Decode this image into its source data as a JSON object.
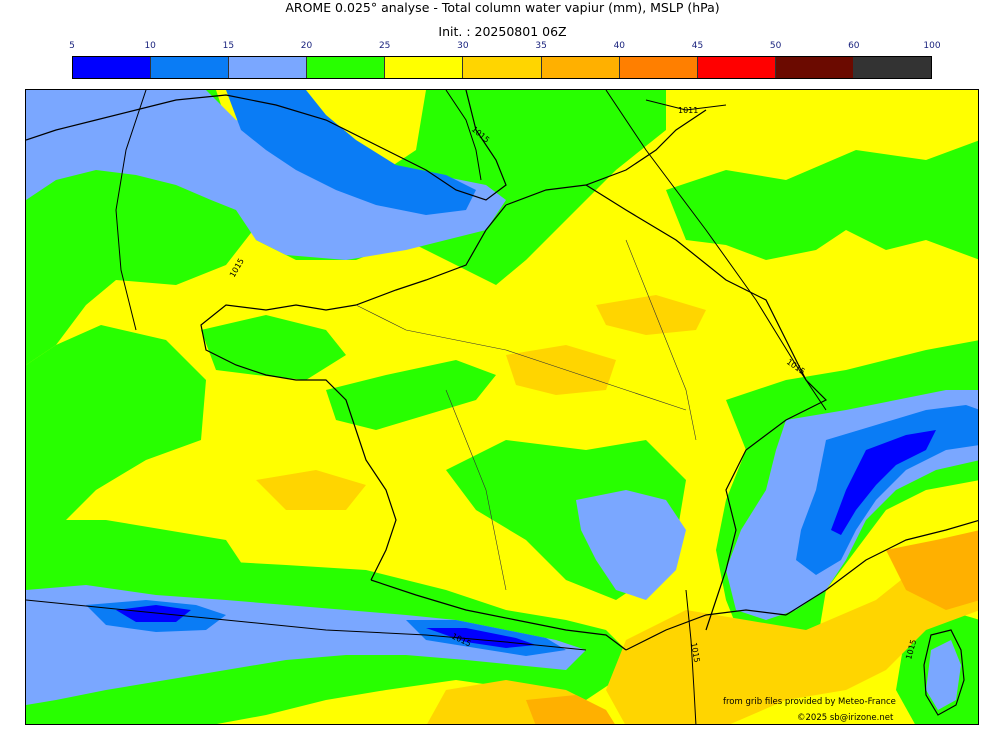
{
  "header": {
    "title": "AROME 0.025° analyse - Total column water vapiur (mm), MSLP (hPa)",
    "subtitle": "Init. : 20250801 06Z"
  },
  "colorbar": {
    "ticks": [
      "5",
      "10",
      "15",
      "20",
      "25",
      "30",
      "35",
      "40",
      "45",
      "50",
      "60",
      "100"
    ],
    "colors": [
      "#0000ff",
      "#0a7cf5",
      "#7aa7ff",
      "#28ff00",
      "#ffff00",
      "#ffd500",
      "#ffb000",
      "#ff7f00",
      "#ff0000",
      "#6b0a00",
      "#333333"
    ]
  },
  "map": {
    "isobar_labels": [
      "1011",
      "1015",
      "1015",
      "1015",
      "1015",
      "1015",
      "1015"
    ]
  },
  "credits": {
    "source": "from grib files provided by Meteo-France",
    "copyright": "©2025 sb@irizone.net"
  }
}
